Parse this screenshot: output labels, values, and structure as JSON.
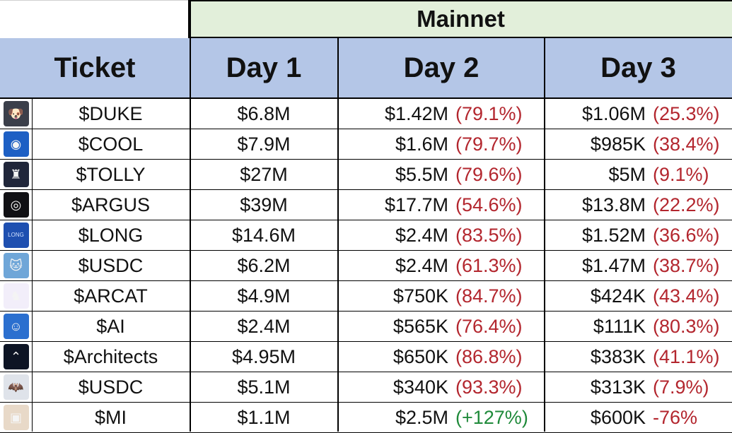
{
  "header": {
    "group_label": "Mainnet",
    "columns": [
      "Ticket",
      "Day 1",
      "Day 2",
      "Day 3"
    ]
  },
  "rows": [
    {
      "ticket": "$DUKE",
      "icon": "dog-icon",
      "icon_bg": "#3b3f4a",
      "day1": "$6.8M",
      "day2": "$1.42M",
      "day2_change": "(79.1%)",
      "day2_color": "neg",
      "day3": "$1.06M",
      "day3_change": "(25.3%)",
      "day3_color": "neg"
    },
    {
      "ticket": "$COOL",
      "icon": "sunglasses-icon",
      "icon_bg": "#1d5fc4",
      "day1": "$7.9M",
      "day2": "$1.6M",
      "day2_change": "(79.7%)",
      "day2_color": "neg",
      "day3": "$985K",
      "day3_change": "(38.4%)",
      "day3_color": "neg"
    },
    {
      "ticket": "$TOLLY",
      "icon": "castle-icon",
      "icon_bg": "#20263a",
      "day1": "$27M",
      "day2": "$5.5M",
      "day2_change": "(79.6%)",
      "day2_color": "neg",
      "day3": "$5M",
      "day3_change": "(9.1%)",
      "day3_color": "neg"
    },
    {
      "ticket": "$ARGUS",
      "icon": "eye-icon",
      "icon_bg": "#101014",
      "day1": "$39M",
      "day2": "$17.7M",
      "day2_change": "(54.6%)",
      "day2_color": "neg",
      "day3": "$13.8M",
      "day3_change": "(22.2%)",
      "day3_color": "neg"
    },
    {
      "ticket": "$LONG",
      "icon": "long-logo-icon",
      "icon_bg": "#1e4fb0",
      "day1": "$14.6M",
      "day2": "$2.4M",
      "day2_change": "(83.5%)",
      "day2_color": "neg",
      "day3": "$1.52M",
      "day3_change": "(36.6%)",
      "day3_color": "neg"
    },
    {
      "ticket": "$USDC",
      "icon": "cat-icon",
      "icon_bg": "#6fa6d8",
      "day1": "$6.2M",
      "day2": "$2.4M",
      "day2_change": "(61.3%)",
      "day2_color": "neg",
      "day3": "$1.47M",
      "day3_change": "(38.7%)",
      "day3_color": "neg"
    },
    {
      "ticket": "$ARCAT",
      "icon": "purple-cat-icon",
      "icon_bg": "#f2eefa",
      "day1": "$4.9M",
      "day2": "$750K",
      "day2_change": "(84.7%)",
      "day2_color": "neg",
      "day3": "$424K",
      "day3_change": "(43.4%)",
      "day3_color": "neg"
    },
    {
      "ticket": "$AI",
      "icon": "robot-icon",
      "icon_bg": "#2b6fcf",
      "day1": "$2.4M",
      "day2": "$565K",
      "day2_change": "(76.4%)",
      "day2_color": "neg",
      "day3": "$111K",
      "day3_change": "(80.3%)",
      "day3_color": "neg"
    },
    {
      "ticket": "$Architects",
      "icon": "compass-icon",
      "icon_bg": "#0d1424",
      "day1": "$4.95M",
      "day2": "$650K",
      "day2_change": "(86.8%)",
      "day2_color": "neg",
      "day3": "$383K",
      "day3_change": "(41.1%)",
      "day3_color": "neg"
    },
    {
      "ticket": "$USDC",
      "icon": "bat-icon",
      "icon_bg": "#dfe3ea",
      "day1": "$5.1M",
      "day2": "$340K",
      "day2_change": "(93.3%)",
      "day2_color": "neg",
      "day3": "$313K",
      "day3_change": "(7.9%)",
      "day3_color": "neg"
    },
    {
      "ticket": "$MI",
      "icon": "pixel-cat-icon",
      "icon_bg": "#e8d9c8",
      "day1": "$1.1M",
      "day2": "$2.5M",
      "day2_change": "(+127%)",
      "day2_color": "pos",
      "day3": "$600K",
      "day3_change": "-76%",
      "day3_color": "neg"
    }
  ]
}
